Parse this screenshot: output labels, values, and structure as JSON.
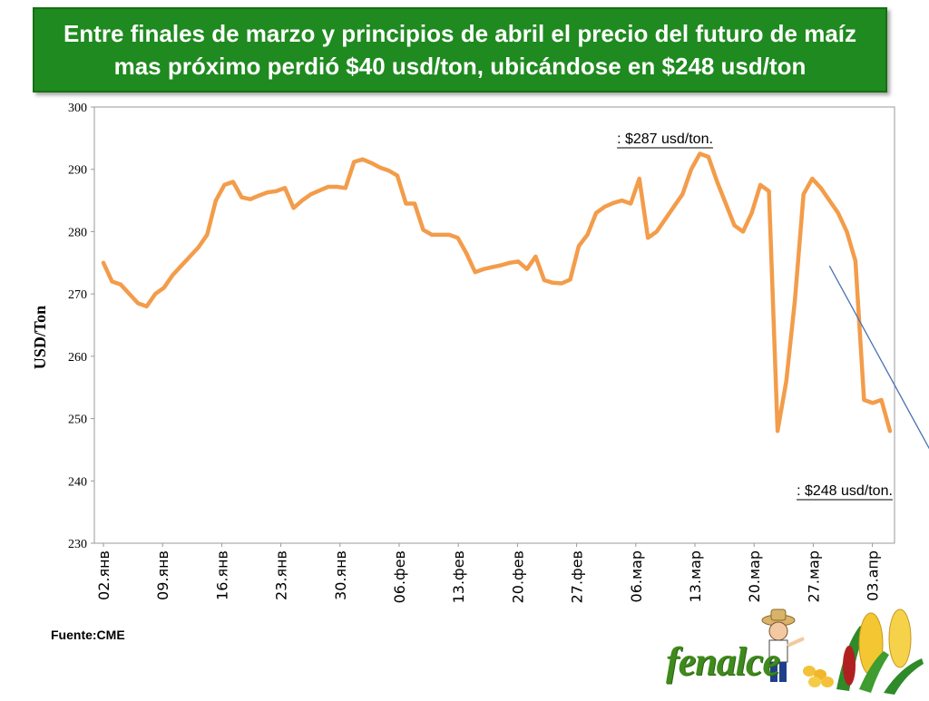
{
  "header": {
    "title": "Entre finales de marzo y principios de abril el precio del futuro de maíz mas próximo perdió $40 usd/ton, ubicándose en $248 usd/ton"
  },
  "source": "Fuente:CME",
  "logo": {
    "text": "fenalce"
  },
  "colors": {
    "title_bg": "#1f8a1f",
    "line": "#f39c4a",
    "arrow": "#4a72b0"
  },
  "chart_data": {
    "type": "line",
    "title": "",
    "xlabel": "",
    "ylabel": "USD/Ton",
    "ylim": [
      230,
      300
    ],
    "yticks": [
      230,
      240,
      250,
      260,
      270,
      280,
      290,
      300
    ],
    "grid": false,
    "x_tick_labels": [
      "02.янв",
      "09.янв",
      "16.янв",
      "23.янв",
      "30.янв",
      "06.фев",
      "13.фев",
      "20.фев",
      "27.фев",
      "06.мар",
      "13.мар",
      "20.мар",
      "27.мар",
      "03.апр"
    ],
    "series": [
      {
        "values": [
          275,
          272,
          271.5,
          270,
          268.5,
          268,
          270,
          271,
          273,
          274.5,
          276,
          277.5,
          279.5,
          285,
          287.5,
          288,
          285.5,
          285.2,
          285.8,
          286.3,
          286.5,
          287,
          283.8,
          285,
          286,
          286.6,
          287.2,
          287.2,
          287,
          291.2,
          291.6,
          291,
          290.3,
          289.8,
          289,
          284.5,
          284.5,
          280.3,
          279.5,
          279.5,
          279.5,
          279,
          276.5,
          273.5,
          274,
          274.3,
          274.6,
          275,
          275.2,
          274,
          276,
          272.2,
          271.8,
          271.7,
          272.3,
          277.7,
          279.5,
          283,
          284,
          284.6,
          285,
          284.5,
          288.5,
          279,
          280,
          282,
          284,
          286,
          290,
          292.5,
          292,
          288,
          284.5,
          281,
          280,
          283,
          287.5,
          286.5,
          248,
          256,
          269,
          286,
          288.5,
          287,
          285,
          283,
          280,
          275.3,
          253,
          252.5,
          253,
          248
        ]
      }
    ],
    "annotations": [
      {
        "text": ": $287 usd/ton."
      },
      {
        "text": ": $248 usd/ton."
      }
    ],
    "trend_arrow": {
      "from": [
        84,
        274.5
      ],
      "to": [
        97,
        241.5
      ]
    }
  }
}
